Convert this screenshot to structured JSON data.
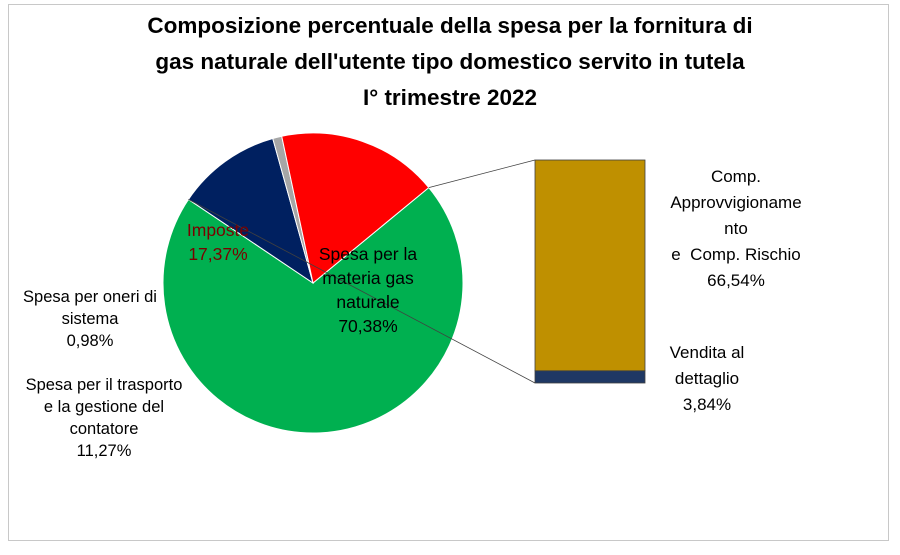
{
  "chart_data": {
    "type": "pie",
    "title_lines": [
      "Composizione percentuale della spesa per la fornitura di",
      "gas naturale dell'utente tipo domestico servito in tutela",
      "I° trimestre 2022"
    ],
    "slices": [
      {
        "key": "materia",
        "label_lines": [
          "Spesa per la",
          "materia gas",
          "naturale"
        ],
        "value_label": "70,38%",
        "value": 70.38,
        "color": "#00b050"
      },
      {
        "key": "trasporto",
        "label_lines": [
          "Spesa per il trasporto",
          "e la gestione del",
          "contatore"
        ],
        "value_label": "11,27%",
        "value": 11.27,
        "color": "#002060"
      },
      {
        "key": "oneri",
        "label_lines": [
          "Spesa per oneri di",
          "sistema"
        ],
        "value_label": "0,98%",
        "value": 0.98,
        "color": "#a6a6a6"
      },
      {
        "key": "imposte",
        "label_lines": [
          "Imposte"
        ],
        "value_label": "17,37%",
        "value": 17.37,
        "color": "#ff0000"
      }
    ],
    "breakdown_of": "materia",
    "breakdown": [
      {
        "key": "approvvigionamento",
        "label_lines": [
          "Comp.",
          "Approvvigioname",
          "nto",
          "e  Comp. Rischio"
        ],
        "value_label": "66,54%",
        "value": 66.54,
        "color": "#bf9000"
      },
      {
        "key": "vendita",
        "label_lines": [
          "Vendita al",
          "dettaglio"
        ],
        "value_label": "3,84%",
        "value": 3.84,
        "color": "#1f3864"
      }
    ]
  }
}
